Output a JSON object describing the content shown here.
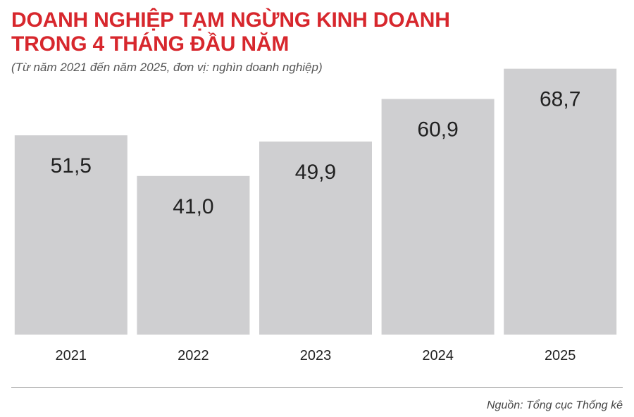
{
  "chart_data": {
    "type": "bar",
    "title": [
      "DOANH NGHIỆP TẠM NGỪNG KINH DOANH",
      "TRONG 4 THÁNG ĐẦU NĂM"
    ],
    "subtitle": "(Từ năm 2021 đến năm 2025, đơn vị: nghìn doanh nghiệp)",
    "categories": [
      "2021",
      "2022",
      "2023",
      "2024",
      "2025"
    ],
    "values": [
      51.5,
      41.0,
      49.9,
      60.9,
      68.7
    ],
    "value_labels": [
      "51,5",
      "41,0",
      "49,9",
      "60,9",
      "68,7"
    ],
    "ylim": [
      0,
      75
    ],
    "grid": false,
    "legend": "none",
    "colors": {
      "bar": "#cfcfd1",
      "title": "#d7272d",
      "text": "#222222"
    }
  },
  "footer": {
    "source": "Nguồn: Tổng cục Thống kê"
  }
}
